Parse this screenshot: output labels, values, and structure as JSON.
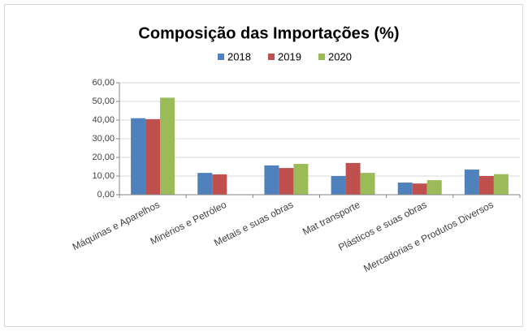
{
  "chart_data": {
    "type": "bar",
    "title": "Composição das Importações (%)",
    "categories": [
      "Máquinas e Aparelhos",
      "Minérios e Petróleo",
      "Metais e suas obras",
      "Mat transporte",
      "Plásticos e suas obras",
      "Mercadorias e Produtos Diversos"
    ],
    "series": [
      {
        "name": "2018",
        "color": "#4f81bd",
        "values": [
          41,
          11.7,
          15.7,
          10,
          6.5,
          13.5
        ]
      },
      {
        "name": "2019",
        "color": "#c0504d",
        "values": [
          40.5,
          10.9,
          14.3,
          17,
          6,
          10
        ]
      },
      {
        "name": "2020",
        "color": "#9bbb59",
        "values": [
          52,
          0,
          16.5,
          11.7,
          7.8,
          11
        ]
      }
    ],
    "ylim": [
      0,
      60
    ],
    "yticks": [
      {
        "value": 0,
        "label": "0,00"
      },
      {
        "value": 10,
        "label": "10,00"
      },
      {
        "value": 20,
        "label": "20,00"
      },
      {
        "value": 30,
        "label": "30,00"
      },
      {
        "value": 40,
        "label": "40,00"
      },
      {
        "value": 50,
        "label": "50,00"
      },
      {
        "value": 60,
        "label": "60,00"
      }
    ],
    "grid": true,
    "legend": "top"
  }
}
